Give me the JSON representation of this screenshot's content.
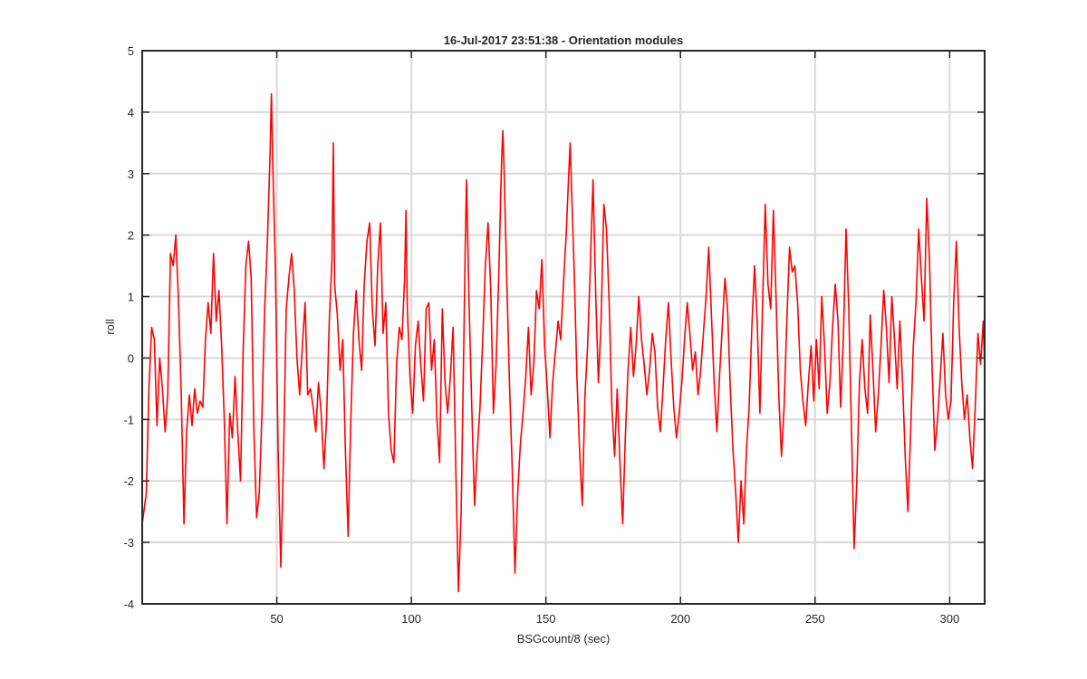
{
  "chart_data": {
    "type": "line",
    "title": "16-Jul-2017 23:51:38 - Orientation modules",
    "xlabel": "BSGcount/8 (sec)",
    "ylabel": "roll",
    "xlim": [
      0,
      313
    ],
    "ylim": [
      -4,
      5
    ],
    "xticks": [
      50,
      100,
      150,
      200,
      250,
      300
    ],
    "yticks": [
      -4,
      -3,
      -2,
      -1,
      0,
      1,
      2,
      3,
      4,
      5
    ],
    "grid": true,
    "line_color": "#ff0000",
    "series": [
      {
        "points": [
          [
            0.0,
            -2.7
          ],
          [
            1.5,
            -2.2
          ],
          [
            2.5,
            -0.5
          ],
          [
            3.5,
            0.5
          ],
          [
            4.5,
            0.3
          ],
          [
            5.5,
            -1.1
          ],
          [
            6.5,
            0.0
          ],
          [
            7.5,
            -0.5
          ],
          [
            8.5,
            -1.2
          ],
          [
            9.5,
            -0.6
          ],
          [
            10.5,
            1.7
          ],
          [
            11.5,
            1.5
          ],
          [
            12.5,
            2.0
          ],
          [
            13.5,
            0.9
          ],
          [
            14.5,
            -0.6
          ],
          [
            15.5,
            -2.7
          ],
          [
            16.5,
            -1.2
          ],
          [
            17.5,
            -0.6
          ],
          [
            18.5,
            -1.1
          ],
          [
            19.5,
            -0.5
          ],
          [
            20.5,
            -0.9
          ],
          [
            21.5,
            -0.7
          ],
          [
            22.5,
            -0.8
          ],
          [
            23.5,
            0.3
          ],
          [
            24.5,
            0.9
          ],
          [
            25.5,
            0.4
          ],
          [
            26.5,
            1.7
          ],
          [
            27.5,
            0.6
          ],
          [
            28.5,
            1.1
          ],
          [
            29.5,
            0.2
          ],
          [
            30.5,
            -1.0
          ],
          [
            31.5,
            -2.7
          ],
          [
            32.5,
            -0.9
          ],
          [
            33.5,
            -1.3
          ],
          [
            34.5,
            -0.3
          ],
          [
            35.5,
            -1.2
          ],
          [
            36.5,
            -2.0
          ],
          [
            37.5,
            0.1
          ],
          [
            38.5,
            1.5
          ],
          [
            39.5,
            1.9
          ],
          [
            40.5,
            1.3
          ],
          [
            41.5,
            -1.2
          ],
          [
            42.5,
            -2.6
          ],
          [
            43.5,
            -2.2
          ],
          [
            44.5,
            -0.9
          ],
          [
            45.5,
            0.8
          ],
          [
            46.5,
            1.9
          ],
          [
            47.5,
            3.3
          ],
          [
            48.0,
            4.3
          ],
          [
            48.5,
            3.2
          ],
          [
            49.5,
            1.4
          ],
          [
            50.5,
            -1.5
          ],
          [
            51.5,
            -3.4
          ],
          [
            52.5,
            -1.6
          ],
          [
            53.5,
            0.8
          ],
          [
            54.5,
            1.3
          ],
          [
            55.5,
            1.7
          ],
          [
            56.5,
            1.1
          ],
          [
            57.5,
            0.0
          ],
          [
            58.5,
            -0.6
          ],
          [
            59.5,
            0.2
          ],
          [
            60.5,
            0.9
          ],
          [
            61.5,
            -0.6
          ],
          [
            62.5,
            -0.5
          ],
          [
            63.5,
            -0.8
          ],
          [
            64.5,
            -1.2
          ],
          [
            65.5,
            -0.4
          ],
          [
            66.5,
            -0.9
          ],
          [
            67.5,
            -1.8
          ],
          [
            68.5,
            -1.0
          ],
          [
            69.5,
            0.6
          ],
          [
            70.5,
            1.6
          ],
          [
            71.0,
            3.5
          ],
          [
            71.5,
            1.2
          ],
          [
            72.5,
            0.7
          ],
          [
            73.5,
            -0.2
          ],
          [
            74.5,
            0.3
          ],
          [
            75.5,
            -1.5
          ],
          [
            76.5,
            -2.9
          ],
          [
            77.5,
            -1.0
          ],
          [
            78.5,
            0.4
          ],
          [
            79.5,
            1.1
          ],
          [
            80.5,
            0.3
          ],
          [
            81.5,
            -0.2
          ],
          [
            82.5,
            1.2
          ],
          [
            83.5,
            1.9
          ],
          [
            84.5,
            2.2
          ],
          [
            85.5,
            0.8
          ],
          [
            86.5,
            0.2
          ],
          [
            87.5,
            1.5
          ],
          [
            88.5,
            2.2
          ],
          [
            89.5,
            0.4
          ],
          [
            90.5,
            0.9
          ],
          [
            91.5,
            -0.9
          ],
          [
            92.5,
            -1.5
          ],
          [
            93.5,
            -1.7
          ],
          [
            94.5,
            -0.1
          ],
          [
            95.5,
            0.5
          ],
          [
            96.5,
            0.3
          ],
          [
            97.5,
            1.3
          ],
          [
            98.0,
            2.4
          ],
          [
            98.5,
            0.8
          ],
          [
            99.5,
            -0.3
          ],
          [
            100.5,
            -0.9
          ],
          [
            101.5,
            0.2
          ],
          [
            102.5,
            0.6
          ],
          [
            103.5,
            -0.1
          ],
          [
            104.5,
            -0.7
          ],
          [
            105.5,
            0.8
          ],
          [
            106.5,
            0.9
          ],
          [
            107.5,
            -0.2
          ],
          [
            108.5,
            0.3
          ],
          [
            109.5,
            -1.0
          ],
          [
            110.5,
            -1.7
          ],
          [
            111.5,
            0.8
          ],
          [
            112.5,
            -0.4
          ],
          [
            113.5,
            -0.9
          ],
          [
            114.5,
            -0.3
          ],
          [
            115.5,
            0.5
          ],
          [
            116.5,
            -1.8
          ],
          [
            117.5,
            -3.8
          ],
          [
            118.5,
            -2.5
          ],
          [
            119.5,
            0.3
          ],
          [
            120.0,
            1.7
          ],
          [
            120.5,
            2.9
          ],
          [
            121.5,
            0.8
          ],
          [
            122.5,
            -0.9
          ],
          [
            123.5,
            -2.4
          ],
          [
            124.5,
            -1.5
          ],
          [
            125.5,
            -0.8
          ],
          [
            126.5,
            0.3
          ],
          [
            127.5,
            1.5
          ],
          [
            128.5,
            2.2
          ],
          [
            129.5,
            1.1
          ],
          [
            130.5,
            -0.9
          ],
          [
            131.5,
            -0.1
          ],
          [
            132.5,
            1.4
          ],
          [
            133.5,
            3.2
          ],
          [
            134.0,
            3.7
          ],
          [
            134.5,
            3.0
          ],
          [
            135.5,
            1.2
          ],
          [
            136.5,
            -0.5
          ],
          [
            137.5,
            -1.8
          ],
          [
            138.5,
            -3.5
          ],
          [
            139.5,
            -2.2
          ],
          [
            140.5,
            -1.4
          ],
          [
            141.5,
            -0.9
          ],
          [
            142.5,
            -0.3
          ],
          [
            143.5,
            0.5
          ],
          [
            144.5,
            -0.6
          ],
          [
            145.5,
            -0.1
          ],
          [
            146.5,
            1.1
          ],
          [
            147.5,
            0.8
          ],
          [
            148.5,
            1.6
          ],
          [
            149.5,
            0.2
          ],
          [
            150.5,
            -0.5
          ],
          [
            151.5,
            -1.3
          ],
          [
            152.5,
            -0.4
          ],
          [
            153.5,
            0.1
          ],
          [
            154.5,
            0.6
          ],
          [
            155.5,
            0.3
          ],
          [
            156.5,
            1.2
          ],
          [
            157.5,
            2.0
          ],
          [
            158.5,
            3.0
          ],
          [
            159.0,
            3.5
          ],
          [
            159.5,
            2.8
          ],
          [
            160.5,
            1.4
          ],
          [
            161.5,
            -0.3
          ],
          [
            162.5,
            -1.5
          ],
          [
            163.5,
            -2.4
          ],
          [
            164.5,
            -0.6
          ],
          [
            165.5,
            0.2
          ],
          [
            166.5,
            1.5
          ],
          [
            167.5,
            2.9
          ],
          [
            168.5,
            1.0
          ],
          [
            169.5,
            -0.4
          ],
          [
            170.5,
            0.6
          ],
          [
            171.5,
            2.5
          ],
          [
            172.5,
            2.1
          ],
          [
            173.5,
            0.9
          ],
          [
            174.5,
            -0.8
          ],
          [
            175.5,
            -1.6
          ],
          [
            176.5,
            -0.5
          ],
          [
            177.5,
            -1.7
          ],
          [
            178.5,
            -2.7
          ],
          [
            179.5,
            -1.3
          ],
          [
            180.5,
            -0.2
          ],
          [
            181.5,
            0.5
          ],
          [
            182.5,
            -0.3
          ],
          [
            183.5,
            0.2
          ],
          [
            184.5,
            1.0
          ],
          [
            185.5,
            0.3
          ],
          [
            186.5,
            -0.1
          ],
          [
            187.5,
            -0.6
          ],
          [
            188.5,
            -0.2
          ],
          [
            189.5,
            0.4
          ],
          [
            190.5,
            0.1
          ],
          [
            191.5,
            -0.8
          ],
          [
            192.5,
            -1.2
          ],
          [
            193.5,
            -0.5
          ],
          [
            194.5,
            0.3
          ],
          [
            195.5,
            0.9
          ],
          [
            196.5,
            0.0
          ],
          [
            197.5,
            -0.8
          ],
          [
            198.5,
            -1.3
          ],
          [
            199.5,
            -0.9
          ],
          [
            200.5,
            -0.4
          ],
          [
            201.5,
            0.3
          ],
          [
            202.5,
            0.9
          ],
          [
            203.5,
            0.4
          ],
          [
            204.5,
            -0.2
          ],
          [
            205.5,
            0.1
          ],
          [
            206.5,
            -0.6
          ],
          [
            207.5,
            -0.2
          ],
          [
            208.5,
            0.4
          ],
          [
            209.5,
            1.0
          ],
          [
            210.5,
            1.8
          ],
          [
            211.5,
            0.7
          ],
          [
            212.5,
            -0.4
          ],
          [
            213.5,
            -1.2
          ],
          [
            214.5,
            -0.3
          ],
          [
            215.5,
            0.5
          ],
          [
            216.5,
            1.3
          ],
          [
            217.5,
            0.8
          ],
          [
            218.5,
            -0.5
          ],
          [
            219.5,
            -1.5
          ],
          [
            220.5,
            -2.2
          ],
          [
            221.5,
            -3.0
          ],
          [
            222.5,
            -2.0
          ],
          [
            223.5,
            -2.7
          ],
          [
            224.5,
            -1.5
          ],
          [
            225.5,
            -0.8
          ],
          [
            226.5,
            0.5
          ],
          [
            227.5,
            1.5
          ],
          [
            228.5,
            0.6
          ],
          [
            229.5,
            -0.9
          ],
          [
            230.5,
            0.9
          ],
          [
            231.5,
            2.5
          ],
          [
            232.5,
            1.2
          ],
          [
            233.5,
            0.8
          ],
          [
            234.5,
            2.4
          ],
          [
            235.5,
            1.0
          ],
          [
            236.5,
            -0.6
          ],
          [
            237.5,
            -1.6
          ],
          [
            238.5,
            -0.8
          ],
          [
            239.5,
            0.6
          ],
          [
            240.5,
            1.8
          ],
          [
            241.5,
            1.4
          ],
          [
            242.5,
            1.5
          ],
          [
            243.5,
            0.9
          ],
          [
            244.5,
            -0.2
          ],
          [
            245.5,
            -0.7
          ],
          [
            246.5,
            -1.1
          ],
          [
            247.5,
            -0.4
          ],
          [
            248.5,
            0.2
          ],
          [
            249.5,
            -0.7
          ],
          [
            250.5,
            0.3
          ],
          [
            251.5,
            -0.5
          ],
          [
            252.5,
            1.0
          ],
          [
            253.5,
            0.2
          ],
          [
            254.5,
            -0.9
          ],
          [
            255.5,
            -0.4
          ],
          [
            256.5,
            0.5
          ],
          [
            257.5,
            1.2
          ],
          [
            258.5,
            0.6
          ],
          [
            259.5,
            -0.8
          ],
          [
            260.5,
            0.3
          ],
          [
            261.5,
            2.1
          ],
          [
            262.5,
            0.8
          ],
          [
            263.5,
            -1.1
          ],
          [
            264.5,
            -3.1
          ],
          [
            265.5,
            -2.0
          ],
          [
            266.5,
            -0.4
          ],
          [
            267.5,
            0.3
          ],
          [
            268.5,
            -0.5
          ],
          [
            269.5,
            -0.9
          ],
          [
            270.5,
            0.7
          ],
          [
            271.5,
            -0.2
          ],
          [
            272.5,
            -1.2
          ],
          [
            273.5,
            -0.6
          ],
          [
            274.5,
            0.2
          ],
          [
            275.5,
            1.1
          ],
          [
            276.5,
            0.5
          ],
          [
            277.5,
            -0.4
          ],
          [
            278.5,
            1.0
          ],
          [
            279.5,
            0.3
          ],
          [
            280.5,
            -0.5
          ],
          [
            281.5,
            0.6
          ],
          [
            282.5,
            -0.4
          ],
          [
            283.5,
            -1.6
          ],
          [
            284.5,
            -2.5
          ],
          [
            285.5,
            -1.2
          ],
          [
            286.5,
            0.2
          ],
          [
            287.5,
            0.9
          ],
          [
            288.5,
            2.1
          ],
          [
            289.5,
            1.3
          ],
          [
            290.5,
            0.6
          ],
          [
            291.5,
            2.6
          ],
          [
            292.5,
            1.6
          ],
          [
            293.5,
            -0.2
          ],
          [
            294.5,
            -1.5
          ],
          [
            295.5,
            -1.0
          ],
          [
            296.5,
            -0.3
          ],
          [
            297.5,
            0.4
          ],
          [
            298.5,
            -0.6
          ],
          [
            299.5,
            -1.0
          ],
          [
            300.5,
            -0.7
          ],
          [
            301.5,
            0.9
          ],
          [
            302.5,
            1.9
          ],
          [
            303.5,
            0.5
          ],
          [
            304.5,
            -0.4
          ],
          [
            305.5,
            -1.0
          ],
          [
            306.5,
            -0.6
          ],
          [
            307.5,
            -1.3
          ],
          [
            308.5,
            -1.8
          ],
          [
            309.5,
            -0.8
          ],
          [
            310.5,
            0.4
          ],
          [
            311.5,
            -0.1
          ],
          [
            312.5,
            0.6
          ],
          [
            313.0,
            -0.2
          ]
        ]
      }
    ]
  }
}
